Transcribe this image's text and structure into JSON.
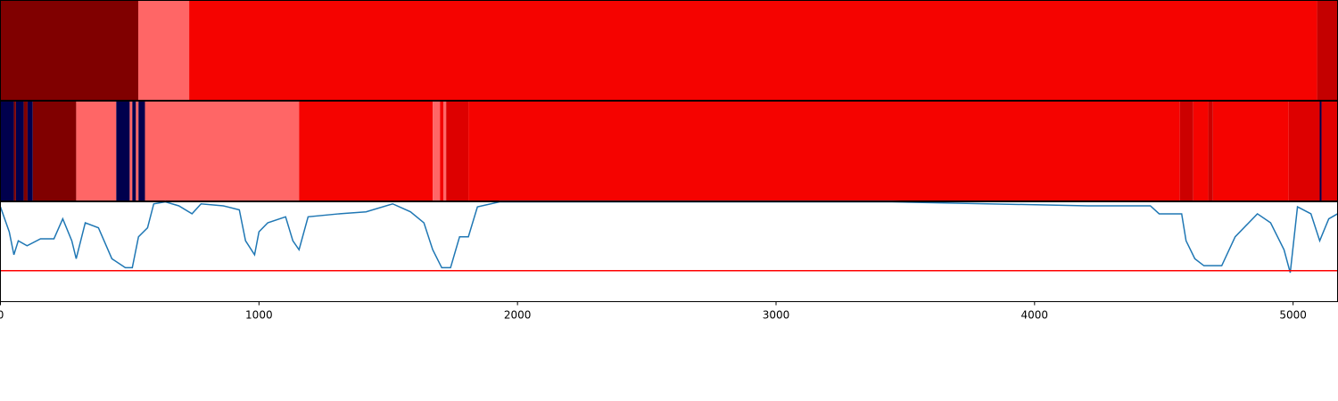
{
  "chart_data": [
    {
      "type": "segments",
      "xlim": [
        0,
        5172
      ],
      "segments": [
        {
          "start": 0,
          "end": 533,
          "color": "#800000"
        },
        {
          "start": 533,
          "end": 730,
          "color": "#ff6666"
        },
        {
          "start": 730,
          "end": 5093,
          "color": "#f50300"
        },
        {
          "start": 5093,
          "end": 5172,
          "color": "#c40000"
        }
      ]
    },
    {
      "type": "segments",
      "xlim": [
        0,
        5172
      ],
      "segments": [
        {
          "start": 0,
          "end": 52,
          "color": "#00004d"
        },
        {
          "start": 52,
          "end": 60,
          "color": "#800000"
        },
        {
          "start": 60,
          "end": 90,
          "color": "#00004d"
        },
        {
          "start": 90,
          "end": 105,
          "color": "#800000"
        },
        {
          "start": 105,
          "end": 125,
          "color": "#00004d"
        },
        {
          "start": 125,
          "end": 293,
          "color": "#800000"
        },
        {
          "start": 293,
          "end": 448,
          "color": "#ff6666"
        },
        {
          "start": 448,
          "end": 500,
          "color": "#00004d"
        },
        {
          "start": 500,
          "end": 510,
          "color": "#ff6666"
        },
        {
          "start": 510,
          "end": 524,
          "color": "#00004d"
        },
        {
          "start": 524,
          "end": 534,
          "color": "#ff6666"
        },
        {
          "start": 534,
          "end": 559,
          "color": "#00004d"
        },
        {
          "start": 559,
          "end": 1155,
          "color": "#ff6666"
        },
        {
          "start": 1155,
          "end": 1672,
          "color": "#f50300"
        },
        {
          "start": 1672,
          "end": 1700,
          "color": "#ff6666"
        },
        {
          "start": 1700,
          "end": 1714,
          "color": "#f50300"
        },
        {
          "start": 1714,
          "end": 1724,
          "color": "#ff6666"
        },
        {
          "start": 1724,
          "end": 1810,
          "color": "#dd0000"
        },
        {
          "start": 1810,
          "end": 4562,
          "color": "#f50300"
        },
        {
          "start": 4562,
          "end": 4614,
          "color": "#cc0000"
        },
        {
          "start": 4614,
          "end": 4672,
          "color": "#f50300"
        },
        {
          "start": 4672,
          "end": 4690,
          "color": "#cc0000"
        },
        {
          "start": 4690,
          "end": 4983,
          "color": "#f50300"
        },
        {
          "start": 4983,
          "end": 5103,
          "color": "#dd0000"
        },
        {
          "start": 5103,
          "end": 5110,
          "color": "#00004d"
        },
        {
          "start": 5110,
          "end": 5172,
          "color": "#e00000"
        }
      ]
    },
    {
      "type": "line",
      "xlim": [
        0,
        5172
      ],
      "ylim": [
        0,
        1
      ],
      "xticks": [
        0,
        1000,
        2000,
        3000,
        4000,
        5000
      ],
      "x": [
        0,
        34,
        52,
        69,
        103,
        155,
        207,
        241,
        276,
        293,
        328,
        379,
        431,
        483,
        510,
        534,
        569,
        593,
        638,
        690,
        741,
        776,
        862,
        924,
        948,
        983,
        1000,
        1034,
        1103,
        1131,
        1155,
        1190,
        1310,
        1414,
        1517,
        1586,
        1638,
        1672,
        1707,
        1741,
        1776,
        1810,
        1845,
        1931,
        2758,
        3448,
        4206,
        4448,
        4482,
        4569,
        4586,
        4620,
        4655,
        4724,
        4776,
        4862,
        4913,
        4965,
        4989,
        5017,
        5069,
        5103,
        5138,
        5172
      ],
      "series": [
        {
          "color": "#1f77b4",
          "values": [
            0.95,
            0.7,
            0.47,
            0.61,
            0.56,
            0.63,
            0.63,
            0.83,
            0.61,
            0.43,
            0.79,
            0.74,
            0.43,
            0.34,
            0.34,
            0.65,
            0.74,
            0.98,
            1.0,
            0.96,
            0.88,
            0.98,
            0.96,
            0.92,
            0.61,
            0.47,
            0.7,
            0.79,
            0.85,
            0.61,
            0.52,
            0.85,
            0.88,
            0.9,
            0.98,
            0.9,
            0.79,
            0.52,
            0.34,
            0.34,
            0.65,
            0.65,
            0.95,
            1.0,
            1.0,
            1.0,
            0.96,
            0.96,
            0.88,
            0.88,
            0.61,
            0.43,
            0.36,
            0.36,
            0.65,
            0.88,
            0.79,
            0.52,
            0.29,
            0.95,
            0.88,
            0.61,
            0.83,
            0.88
          ]
        }
      ],
      "hline": {
        "value": 0.31,
        "color": "#ff0000"
      }
    }
  ]
}
